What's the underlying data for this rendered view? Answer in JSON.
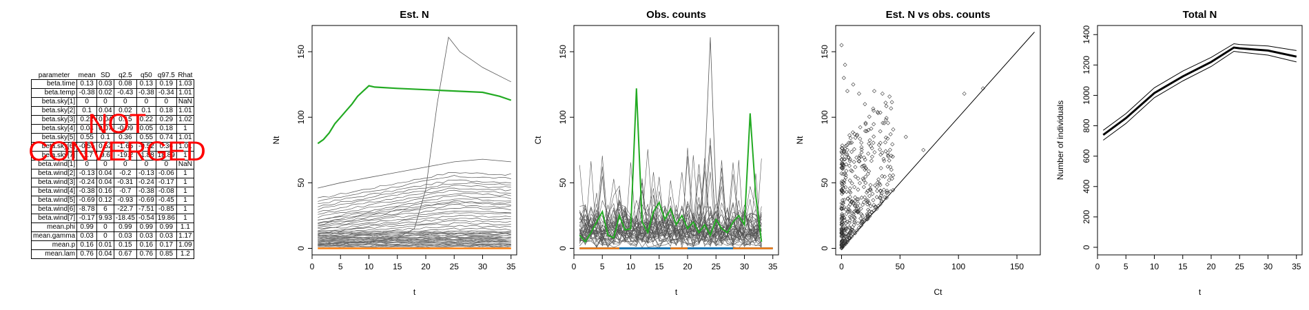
{
  "parameter_table": {
    "headers": [
      "parameter",
      "mean",
      "SD",
      "q2.5",
      "q50",
      "q97.5",
      "Rhat"
    ],
    "rows": [
      [
        "beta.time",
        "0.13",
        "0.03",
        "0.08",
        "0.13",
        "0.19",
        "1.03"
      ],
      [
        "beta.temp",
        "-0.38",
        "0.02",
        "-0.43",
        "-0.38",
        "-0.34",
        "1.01"
      ],
      [
        "beta.sky[1]",
        "0",
        "0",
        "0",
        "0",
        "0",
        "NaN"
      ],
      [
        "beta.sky[2]",
        "0.1",
        "0.04",
        "0.02",
        "0.1",
        "0.18",
        "1.01"
      ],
      [
        "beta.sky[3]",
        "0.22",
        "0.04",
        "0.15",
        "0.22",
        "0.29",
        "1.02"
      ],
      [
        "beta.sky[4]",
        "0.04",
        "0.07",
        "-0.09",
        "0.05",
        "0.18",
        "1"
      ],
      [
        "beta.sky[5]",
        "0.55",
        "0.1",
        "0.36",
        "0.55",
        "0.74",
        "1.01"
      ],
      [
        "beta.sky[6]",
        "-0.55",
        "0.52",
        "-1.65",
        "-0.52",
        "0.36",
        "1.01"
      ],
      [
        "beta.sky[7]",
        "-1.7",
        "9.6",
        "-19.2",
        "-1.88",
        "18.89",
        "1"
      ],
      [
        "beta.wind[1]",
        "0",
        "0",
        "0",
        "0",
        "0",
        "NaN"
      ],
      [
        "beta.wind[2]",
        "-0.13",
        "0.04",
        "-0.2",
        "-0.13",
        "-0.06",
        "1"
      ],
      [
        "beta.wind[3]",
        "-0.24",
        "0.04",
        "-0.31",
        "-0.24",
        "-0.17",
        "1"
      ],
      [
        "beta.wind[4]",
        "-0.38",
        "0.16",
        "-0.7",
        "-0.38",
        "-0.08",
        "1"
      ],
      [
        "beta.wind[5]",
        "-0.69",
        "0.12",
        "-0.93",
        "-0.69",
        "-0.45",
        "1"
      ],
      [
        "beta.wind[6]",
        "-8.78",
        "6",
        "-22.7",
        "-7.51",
        "-0.85",
        "1"
      ],
      [
        "beta.wind[7]",
        "-0.17",
        "9.93",
        "-18.45",
        "-0.54",
        "19.86",
        "1"
      ],
      [
        "mean.phi",
        "0.99",
        "0",
        "0.99",
        "0.99",
        "0.99",
        "1.1"
      ],
      [
        "mean.gamma",
        "0.03",
        "0",
        "0.03",
        "0.03",
        "0.03",
        "1.17"
      ],
      [
        "mean.p",
        "0.16",
        "0.01",
        "0.15",
        "0.16",
        "0.17",
        "1.09"
      ],
      [
        "mean.lam",
        "0.76",
        "0.04",
        "0.67",
        "0.76",
        "0.85",
        "1.2"
      ]
    ],
    "warning_lines": [
      "NOT",
      "CONVERGED"
    ]
  },
  "colors": {
    "highlight": "#22aa22",
    "zero_orange": "#ff7f0e",
    "zero_blue": "#1f77b4",
    "lines": "#555555",
    "warning": "#ff0000"
  },
  "chart_data": [
    {
      "type": "line",
      "title": "Est. N",
      "xlabel": "t",
      "ylabel": "Nt",
      "xlim": [
        0,
        36
      ],
      "ylim": [
        -5,
        170
      ],
      "xticks": [
        0,
        5,
        10,
        15,
        20,
        25,
        30,
        35
      ],
      "yticks": [
        0,
        50,
        100,
        150
      ],
      "highlight": {
        "x": [
          1,
          2,
          3,
          4,
          5,
          6,
          7,
          8,
          9,
          10,
          11,
          15,
          20,
          25,
          30,
          33,
          35
        ],
        "y": [
          80,
          83,
          88,
          95,
          100,
          105,
          110,
          116,
          120,
          124,
          123,
          122,
          121,
          120,
          119,
          116,
          113
        ]
      },
      "peak_series": {
        "x": [
          1,
          5,
          10,
          15,
          18,
          20,
          22,
          24,
          26,
          30,
          35
        ],
        "y": [
          3,
          4,
          5,
          8,
          15,
          45,
          110,
          161,
          150,
          138,
          127
        ]
      },
      "rising_series": {
        "x": [
          1,
          5,
          10,
          15,
          20,
          25,
          30,
          35
        ],
        "y": [
          46,
          50,
          54,
          58,
          62,
          66,
          68,
          66
        ]
      },
      "background_series_start": [
        38,
        36,
        34,
        32,
        30,
        28,
        26,
        24,
        22,
        21,
        20,
        19,
        18,
        17,
        16,
        15,
        14,
        13,
        12,
        11,
        10,
        9,
        8,
        7,
        6,
        5,
        4,
        3,
        2
      ],
      "background_series_end": [
        58,
        55,
        52,
        50,
        48,
        46,
        44,
        42,
        40,
        38,
        36,
        35,
        33,
        31,
        29,
        27,
        25,
        23,
        21,
        19,
        17,
        15,
        13,
        11,
        9,
        7,
        5,
        3,
        2
      ],
      "zero_series": {
        "x": [
          1,
          35
        ],
        "y": [
          0,
          0
        ]
      }
    },
    {
      "type": "line",
      "title": "Obs. counts",
      "xlabel": "t",
      "ylabel": "Ct",
      "xlim": [
        0,
        36
      ],
      "ylim": [
        -5,
        170
      ],
      "xticks": [
        0,
        5,
        10,
        15,
        20,
        25,
        30,
        35
      ],
      "yticks": [
        0,
        50,
        100,
        150
      ],
      "highlight": {
        "x": [
          1,
          2,
          3,
          4,
          5,
          6,
          7,
          8,
          9,
          10,
          11,
          12,
          13,
          14,
          15,
          16,
          17,
          18,
          19,
          20,
          21,
          22,
          23,
          24,
          25,
          26,
          27,
          28,
          29,
          30,
          31,
          32,
          33
        ],
        "y": [
          10,
          5,
          12,
          20,
          28,
          10,
          8,
          25,
          14,
          15,
          122,
          20,
          12,
          28,
          35,
          22,
          30,
          18,
          25,
          15,
          20,
          12,
          18,
          10,
          22,
          15,
          12,
          20,
          25,
          18,
          103,
          40,
          5
        ]
      },
      "peak_series": {
        "x": [
          22,
          23,
          24,
          25,
          26
        ],
        "y": [
          20,
          60,
          161,
          40,
          10
        ]
      },
      "background_seeds": 40,
      "zero_series": {
        "x": [
          1,
          35
        ],
        "y": [
          0,
          0
        ]
      }
    },
    {
      "type": "scatter",
      "title": "Est. N vs obs. counts",
      "xlabel": "Ct",
      "ylabel": "Nt",
      "xlim": [
        -5,
        170
      ],
      "ylim": [
        -5,
        170
      ],
      "xticks": [
        0,
        50,
        100,
        150
      ],
      "yticks": [
        0,
        50,
        100,
        150
      ],
      "diagonal": [
        [
          0,
          0
        ],
        [
          165,
          165
        ]
      ],
      "notable_points": [
        [
          0,
          155
        ],
        [
          3,
          140
        ],
        [
          2,
          130
        ],
        [
          10,
          125
        ],
        [
          5,
          120
        ],
        [
          15,
          118
        ],
        [
          28,
          120
        ],
        [
          35,
          118
        ],
        [
          20,
          110
        ],
        [
          38,
          98
        ],
        [
          55,
          85
        ],
        [
          70,
          75
        ],
        [
          105,
          118
        ],
        [
          121,
          122
        ],
        [
          25,
          78
        ],
        [
          40,
          70
        ]
      ],
      "cloud_points": 420
    },
    {
      "type": "line",
      "title": "Total N",
      "xlabel": "t",
      "ylabel": "Number of individuals",
      "xlim": [
        0,
        36
      ],
      "ylim": [
        -50,
        1460
      ],
      "xticks": [
        0,
        5,
        10,
        15,
        20,
        25,
        30,
        35
      ],
      "yticks": [
        0,
        200,
        400,
        600,
        800,
        1000,
        1200,
        1400
      ],
      "series": [
        {
          "name": "upper",
          "x": [
            1,
            5,
            10,
            15,
            20,
            24,
            25,
            30,
            35
          ],
          "y": [
            770,
            880,
            1050,
            1160,
            1250,
            1340,
            1335,
            1325,
            1295
          ]
        },
        {
          "name": "median",
          "x": [
            1,
            5,
            10,
            15,
            20,
            24,
            25,
            30,
            35
          ],
          "y": [
            740,
            850,
            1015,
            1125,
            1220,
            1315,
            1310,
            1295,
            1255
          ]
        },
        {
          "name": "lower",
          "x": [
            1,
            5,
            10,
            15,
            20,
            24,
            25,
            30,
            35
          ],
          "y": [
            705,
            815,
            985,
            1095,
            1190,
            1290,
            1285,
            1265,
            1220
          ]
        }
      ]
    }
  ]
}
